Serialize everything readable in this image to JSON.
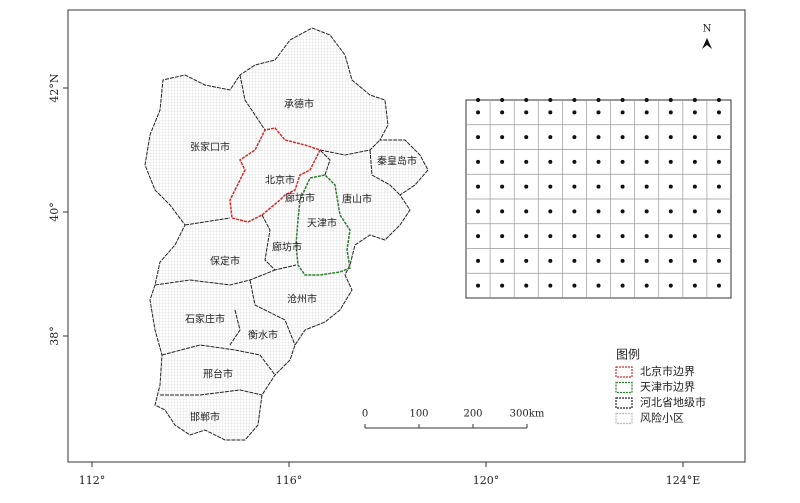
{
  "map": {
    "north": "N",
    "lon_ticks": [
      {
        "value": 112,
        "label": "112°"
      },
      {
        "value": 116,
        "label": "116°"
      },
      {
        "value": 120,
        "label": "120°"
      },
      {
        "value": 124,
        "label": "124°E"
      }
    ],
    "lat_ticks": [
      {
        "value": 42,
        "label": "42°N"
      },
      {
        "value": 40,
        "label": "40°"
      },
      {
        "value": 38,
        "label": "38°"
      }
    ],
    "places": [
      "承德市",
      "张家口市",
      "北京市",
      "秦皇岛市",
      "廊坊市",
      "唐山市",
      "天津市",
      "廊坊市",
      "保定市",
      "沧州市",
      "石家庄市",
      "衡水市",
      "邢台市",
      "邯郸市"
    ],
    "scale_bar": [
      {
        "value": 0,
        "label": "0"
      },
      {
        "value": 100,
        "label": "100"
      },
      {
        "value": 200,
        "label": "200"
      },
      {
        "value": 300,
        "label": "300km"
      }
    ],
    "legend": {
      "title": "图例",
      "items": [
        {
          "label": "北京市边界",
          "color": "#d42a2a"
        },
        {
          "label": "天津市边界",
          "color": "#2e7d2e"
        },
        {
          "label": "河北省地级市",
          "color": "#222222"
        },
        {
          "label": "风险小区",
          "color": "#bbbbbb"
        }
      ]
    }
  }
}
